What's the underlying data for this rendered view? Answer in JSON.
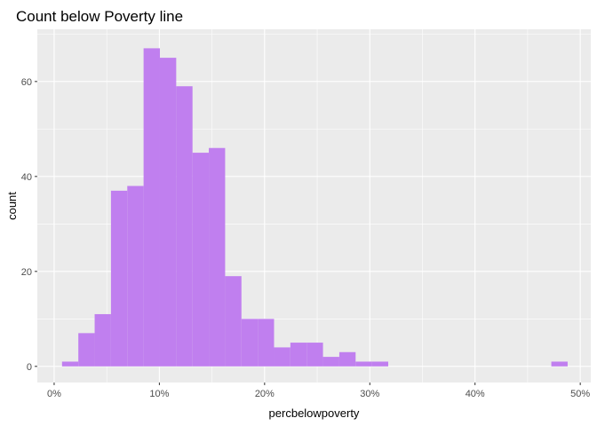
{
  "chart_data": {
    "type": "bar",
    "title": "Count below Poverty line",
    "xlabel": "percbelowpoverty",
    "ylabel": "count",
    "xlim": [
      -0.016,
      0.51
    ],
    "ylim": [
      -3.4,
      71
    ],
    "x_ticks": [
      0,
      0.1,
      0.2,
      0.3,
      0.4,
      0.5
    ],
    "x_tick_labels": [
      "0%",
      "10%",
      "20%",
      "30%",
      "40%",
      "50%"
    ],
    "y_ticks": [
      0,
      20,
      40,
      60
    ],
    "y_tick_labels": [
      "0",
      "20",
      "40",
      "60"
    ],
    "grid": true,
    "bin_width": 0.0155,
    "bins": [
      {
        "x0": 0.0075,
        "x1": 0.023,
        "count": 1
      },
      {
        "x0": 0.023,
        "x1": 0.0385,
        "count": 7
      },
      {
        "x0": 0.0385,
        "x1": 0.054,
        "count": 11
      },
      {
        "x0": 0.054,
        "x1": 0.0695,
        "count": 37
      },
      {
        "x0": 0.0695,
        "x1": 0.085,
        "count": 38
      },
      {
        "x0": 0.085,
        "x1": 0.1005,
        "count": 67
      },
      {
        "x0": 0.1005,
        "x1": 0.116,
        "count": 65
      },
      {
        "x0": 0.116,
        "x1": 0.1315,
        "count": 59
      },
      {
        "x0": 0.1315,
        "x1": 0.147,
        "count": 45
      },
      {
        "x0": 0.147,
        "x1": 0.1625,
        "count": 46
      },
      {
        "x0": 0.1625,
        "x1": 0.178,
        "count": 19
      },
      {
        "x0": 0.178,
        "x1": 0.1935,
        "count": 10
      },
      {
        "x0": 0.1935,
        "x1": 0.209,
        "count": 10
      },
      {
        "x0": 0.209,
        "x1": 0.2245,
        "count": 4
      },
      {
        "x0": 0.2245,
        "x1": 0.24,
        "count": 5
      },
      {
        "x0": 0.24,
        "x1": 0.2555,
        "count": 5
      },
      {
        "x0": 0.2555,
        "x1": 0.271,
        "count": 2
      },
      {
        "x0": 0.271,
        "x1": 0.2865,
        "count": 3
      },
      {
        "x0": 0.2865,
        "x1": 0.302,
        "count": 1
      },
      {
        "x0": 0.302,
        "x1": 0.3175,
        "count": 1
      },
      {
        "x0": 0.4725,
        "x1": 0.488,
        "count": 1
      }
    ],
    "bar_color": "#c07fef",
    "panel_background": "#ebebeb",
    "grid_color": "#ffffff"
  }
}
